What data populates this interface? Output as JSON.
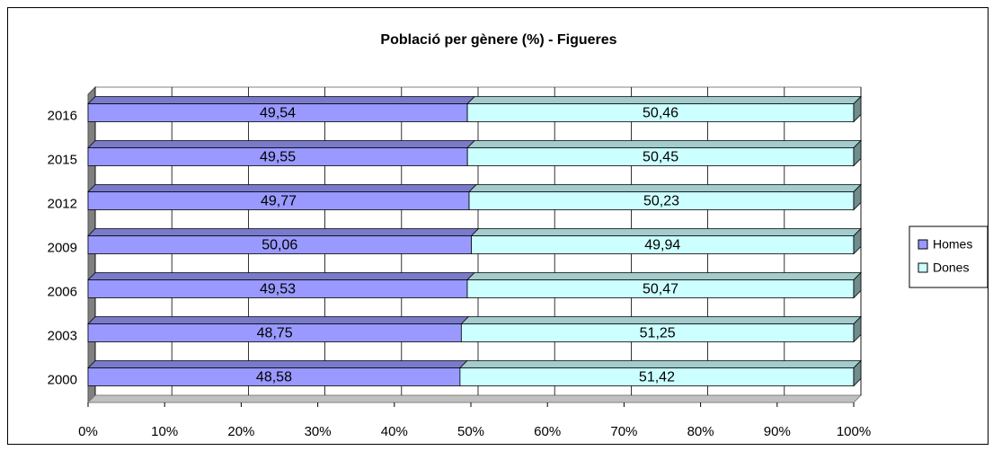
{
  "chart_data": {
    "type": "bar",
    "orientation": "horizontal",
    "stacked": true,
    "title": "Població per gènere (%) - Figueres",
    "categories": [
      "2000",
      "2003",
      "2006",
      "2009",
      "2012",
      "2015",
      "2016"
    ],
    "series": [
      {
        "name": "Homes",
        "color": "#9999ff",
        "values": [
          48.58,
          48.75,
          49.53,
          50.06,
          49.77,
          49.55,
          49.54
        ],
        "value_labels": [
          "48,58",
          "48,75",
          "49,53",
          "50,06",
          "49,77",
          "49,55",
          "49,54"
        ]
      },
      {
        "name": "Dones",
        "color": "#ccffff",
        "values": [
          51.42,
          51.25,
          50.47,
          49.94,
          50.23,
          50.45,
          50.46
        ],
        "value_labels": [
          "51,42",
          "51,25",
          "50,47",
          "49,94",
          "50,23",
          "50,45",
          "50,46"
        ]
      }
    ],
    "xlim": [
      0,
      100
    ],
    "xticks": [
      {
        "value": 0,
        "label": "0%"
      },
      {
        "value": 10,
        "label": "10%"
      },
      {
        "value": 20,
        "label": "20%"
      },
      {
        "value": 30,
        "label": "30%"
      },
      {
        "value": 40,
        "label": "40%"
      },
      {
        "value": 50,
        "label": "50%"
      },
      {
        "value": 60,
        "label": "60%"
      },
      {
        "value": 70,
        "label": "70%"
      },
      {
        "value": 80,
        "label": "80%"
      },
      {
        "value": 90,
        "label": "90%"
      },
      {
        "value": 100,
        "label": "100%"
      }
    ],
    "grid": true,
    "legend": "right"
  }
}
